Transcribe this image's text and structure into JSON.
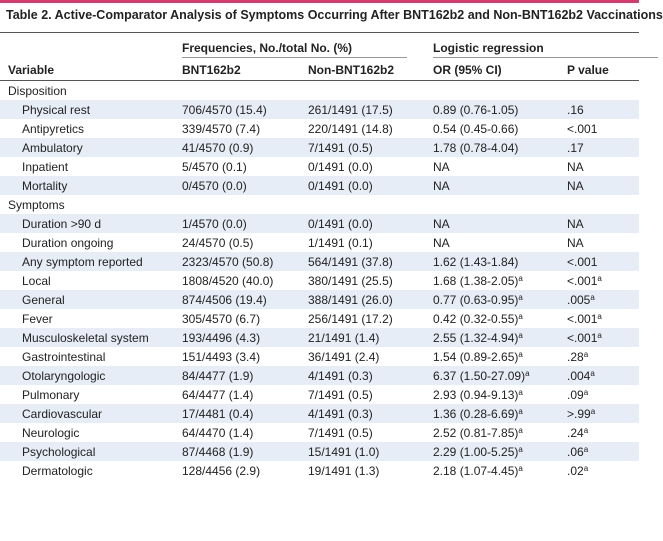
{
  "title": "Table 2. Active-Comparator Analysis of Symptoms Occurring After BNT162b2 and Non-BNT162b2 Vaccinations",
  "table": {
    "group_headers": [
      "Frequencies, No./total No. (%)",
      "Logistic regression"
    ],
    "columns": [
      "Variable",
      "BNT162b2",
      "Non-BNT162b2",
      "OR (95% CI)",
      "P value"
    ],
    "sections": [
      {
        "label": "Disposition",
        "rows": [
          [
            "Physical rest",
            "706/4570 (15.4)",
            "261/1491 (17.5)",
            "0.89 (0.76-1.05)",
            ".16"
          ],
          [
            "Antipyretics",
            "339/4570 (7.4)",
            "220/1491 (14.8)",
            "0.54 (0.45-0.66)",
            "<.001"
          ],
          [
            "Ambulatory",
            "41/4570 (0.9)",
            "7/1491 (0.5)",
            "1.78 (0.78-4.04)",
            ".17"
          ],
          [
            "Inpatient",
            "5/4570 (0.1)",
            "0/1491 (0.0)",
            "NA",
            "NA"
          ],
          [
            "Mortality",
            "0/4570 (0.0)",
            "0/1491 (0.0)",
            "NA",
            "NA"
          ]
        ]
      },
      {
        "label": "Symptoms",
        "rows": [
          [
            "Duration >90 d",
            "1/4570 (0.0)",
            "0/1491 (0.0)",
            "NA",
            "NA"
          ],
          [
            "Duration ongoing",
            "24/4570 (0.5)",
            "1/1491 (0.1)",
            "NA",
            "NA"
          ],
          [
            "Any symptom reported",
            "2323/4570 (50.8)",
            "564/1491 (37.8)",
            "1.62 (1.43-1.84)",
            "<.001"
          ],
          [
            "Local",
            "1808/4520 (40.0)",
            "380/1491 (25.5)",
            {
              "text": "1.68 (1.38-2.05)",
              "sup": "a"
            },
            {
              "text": "<.001",
              "sup": "a"
            }
          ],
          [
            "General",
            "874/4506 (19.4)",
            "388/1491 (26.0)",
            {
              "text": "0.77 (0.63-0.95)",
              "sup": "a"
            },
            {
              "text": ".005",
              "sup": "a"
            }
          ],
          [
            "Fever",
            "305/4570 (6.7)",
            "256/1491 (17.2)",
            {
              "text": "0.42 (0.32-0.55)",
              "sup": "a"
            },
            {
              "text": "<.001",
              "sup": "a"
            }
          ],
          [
            "Musculoskeletal system",
            "193/4496 (4.3)",
            "21/1491 (1.4)",
            {
              "text": "2.55 (1.32-4.94)",
              "sup": "a"
            },
            {
              "text": "<.001",
              "sup": "a"
            }
          ],
          [
            "Gastrointestinal",
            "151/4493 (3.4)",
            "36/1491 (2.4)",
            {
              "text": "1.54 (0.89-2.65)",
              "sup": "a"
            },
            {
              "text": ".28",
              "sup": "a"
            }
          ],
          [
            "Otolaryngologic",
            "84/4477 (1.9)",
            "4/1491 (0.3)",
            {
              "text": "6.37 (1.50-27.09)",
              "sup": "a"
            },
            {
              "text": ".004",
              "sup": "a"
            }
          ],
          [
            "Pulmonary",
            "64/4477 (1.4)",
            "7/1491 (0.5)",
            {
              "text": "2.93 (0.94-9.13)",
              "sup": "a"
            },
            {
              "text": ".09",
              "sup": "a"
            }
          ],
          [
            "Cardiovascular",
            "17/4481 (0.4)",
            "4/1491 (0.3)",
            {
              "text": "1.36 (0.28-6.69)",
              "sup": "a"
            },
            {
              "text": ">.99",
              "sup": "a"
            }
          ],
          [
            "Neurologic",
            "64/4470 (1.4)",
            "7/1491 (0.5)",
            {
              "text": "2.52 (0.81-7.85)",
              "sup": "a"
            },
            {
              "text": ".24",
              "sup": "a"
            }
          ],
          [
            "Psychological",
            "87/4468 (1.9)",
            "15/1491 (1.0)",
            {
              "text": "2.29 (1.00-5.25)",
              "sup": "a"
            },
            {
              "text": ".06",
              "sup": "a"
            }
          ],
          [
            "Dermatologic",
            "128/4456 (2.9)",
            "19/1491 (1.3)",
            {
              "text": "2.18 (1.07-4.45)",
              "sup": "a"
            },
            {
              "text": ".02",
              "sup": "a"
            }
          ]
        ]
      }
    ]
  }
}
